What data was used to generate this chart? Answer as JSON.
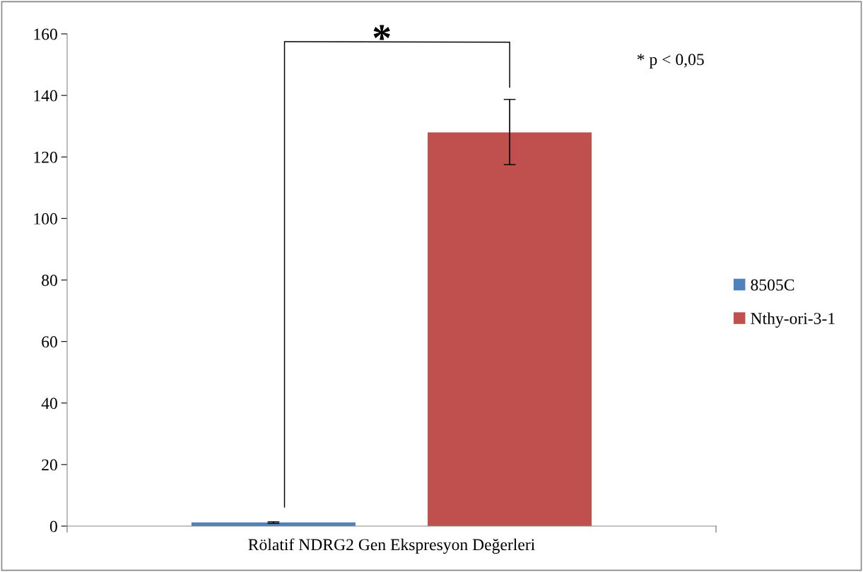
{
  "chart_data": {
    "type": "bar",
    "categories": [
      "Rölatif NDRG2 Gen Ekspresyon Değerleri"
    ],
    "series": [
      {
        "name": "8505C",
        "color": "#4f81bd",
        "values": [
          1.2
        ],
        "errors": [
          [
            0.9,
            1.4
          ]
        ]
      },
      {
        "name": "Nthy-ori-3-1",
        "color": "#c0504d",
        "values": [
          128
        ],
        "errors": [
          [
            117.5,
            138.7
          ]
        ]
      }
    ],
    "ylim": [
      0,
      160
    ],
    "yticks": [
      0,
      20,
      40,
      60,
      80,
      100,
      120,
      140,
      160
    ],
    "grid": false,
    "legend": "right",
    "annotations": [
      "*",
      "* p < 0,05"
    ]
  }
}
